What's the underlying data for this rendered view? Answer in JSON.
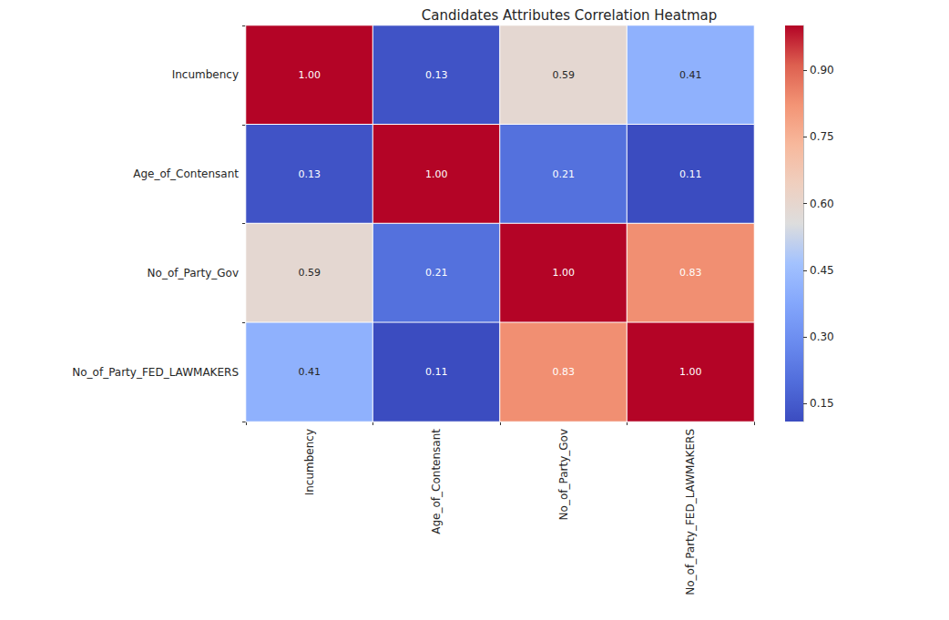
{
  "chart_data": {
    "type": "heatmap",
    "title": "Candidates Attributes Correlation Heatmap",
    "x_categories": [
      "Incumbency",
      "Age_of_Contensant",
      "No_of_Party_Gov",
      "No_of_Party_FED_LAWMAKERS"
    ],
    "y_categories": [
      "Incumbency",
      "Age_of_Contensant",
      "No_of_Party_Gov",
      "No_of_Party_FED_LAWMAKERS"
    ],
    "values": [
      [
        1.0,
        0.13,
        0.59,
        0.41
      ],
      [
        0.13,
        1.0,
        0.21,
        0.11
      ],
      [
        0.59,
        0.21,
        1.0,
        0.83
      ],
      [
        0.41,
        0.11,
        0.83,
        1.0
      ]
    ],
    "value_labels": [
      [
        "1.00",
        "0.13",
        "0.59",
        "0.41"
      ],
      [
        "0.13",
        "1.00",
        "0.21",
        "0.11"
      ],
      [
        "0.59",
        "0.21",
        "1.00",
        "0.83"
      ],
      [
        "0.41",
        "0.11",
        "0.83",
        "1.00"
      ]
    ],
    "data_labels": true,
    "colorbar_range": [
      0.11,
      1.0
    ],
    "colorbar_ticks": [
      0.15,
      {
        "value": 0.3,
        "label": "0.30"
      },
      0.45,
      {
        "value": 0.6,
        "label": "0.60"
      },
      0.75,
      {
        "value": 0.9,
        "label": "0.90"
      }
    ]
  }
}
